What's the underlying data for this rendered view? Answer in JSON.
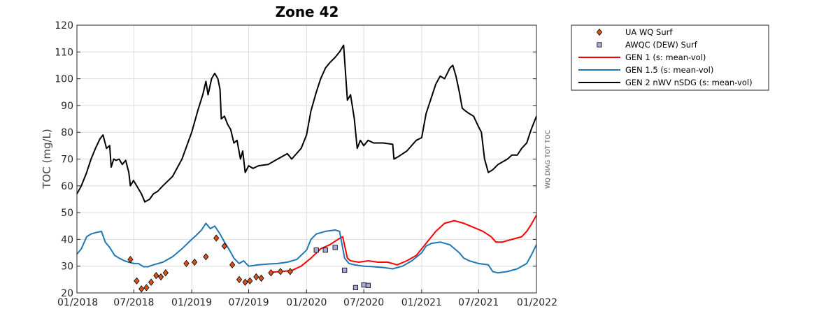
{
  "chart_data": {
    "type": "line",
    "title": "Zone 42",
    "ylabel": "TOC (mg/L)",
    "side_label": "WQ DIAG TOT TOC",
    "xlim": [
      "2018-01-01",
      "2022-01-01"
    ],
    "ylim": [
      20,
      120
    ],
    "grid": true,
    "legend_position": "outside-right",
    "x_ticks": [
      {
        "date": "2018-01-01",
        "label": "01/2018"
      },
      {
        "date": "2018-07-01",
        "label": "07/2018"
      },
      {
        "date": "2019-01-01",
        "label": "01/2019"
      },
      {
        "date": "2019-07-01",
        "label": "07/2019"
      },
      {
        "date": "2020-01-01",
        "label": "01/2020"
      },
      {
        "date": "2020-07-01",
        "label": "07/2020"
      },
      {
        "date": "2021-01-01",
        "label": "01/2021"
      },
      {
        "date": "2021-07-01",
        "label": "07/2021"
      },
      {
        "date": "2022-01-01",
        "label": "01/2022"
      }
    ],
    "y_ticks": [
      20,
      30,
      40,
      50,
      60,
      70,
      80,
      90,
      100,
      110,
      120
    ],
    "series": [
      {
        "name": "UA WQ Surf",
        "kind": "marker",
        "marker": "diamond",
        "color": "#d95319",
        "points": [
          [
            "2018-06-20",
            32.5
          ],
          [
            "2018-07-10",
            24.5
          ],
          [
            "2018-07-25",
            21.5
          ],
          [
            "2018-08-10",
            22.0
          ],
          [
            "2018-08-25",
            24.0
          ],
          [
            "2018-09-10",
            26.5
          ],
          [
            "2018-09-25",
            26.0
          ],
          [
            "2018-10-10",
            27.5
          ],
          [
            "2018-12-15",
            31.0
          ],
          [
            "2019-01-10",
            31.5
          ],
          [
            "2019-02-15",
            33.5
          ],
          [
            "2019-03-20",
            40.5
          ],
          [
            "2019-04-15",
            37.5
          ],
          [
            "2019-05-10",
            30.5
          ],
          [
            "2019-06-01",
            25.0
          ],
          [
            "2019-06-20",
            24.0
          ],
          [
            "2019-07-05",
            24.5
          ],
          [
            "2019-07-25",
            26.0
          ],
          [
            "2019-08-10",
            25.5
          ],
          [
            "2019-09-10",
            27.5
          ],
          [
            "2019-10-10",
            28.0
          ],
          [
            "2019-11-10",
            28.0
          ]
        ]
      },
      {
        "name": "AWQC (DEW) Surf",
        "kind": "marker",
        "marker": "square",
        "color": "#a8a8d8",
        "points": [
          [
            "2020-02-01",
            36.0
          ],
          [
            "2020-03-01",
            36.0
          ],
          [
            "2020-04-01",
            37.0
          ],
          [
            "2020-05-01",
            28.5
          ],
          [
            "2020-06-05",
            22.0
          ],
          [
            "2020-07-01",
            23.0
          ],
          [
            "2020-07-15",
            22.8
          ]
        ]
      },
      {
        "name": "GEN 1 (s: mean-vol)",
        "kind": "line",
        "color": "#ff0000",
        "points": [
          [
            "2019-09-15",
            27.8
          ],
          [
            "2019-10-15",
            28.0
          ],
          [
            "2019-11-15",
            28.4
          ],
          [
            "2019-12-15",
            30.0
          ],
          [
            "2020-01-15",
            33.0
          ],
          [
            "2020-02-15",
            36.5
          ],
          [
            "2020-03-15",
            38.0
          ],
          [
            "2020-04-10",
            40.0
          ],
          [
            "2020-04-25",
            41.0
          ],
          [
            "2020-05-10",
            33.0
          ],
          [
            "2020-05-20",
            32.0
          ],
          [
            "2020-06-15",
            31.5
          ],
          [
            "2020-07-15",
            32.0
          ],
          [
            "2020-08-15",
            31.5
          ],
          [
            "2020-09-15",
            31.5
          ],
          [
            "2020-10-15",
            30.5
          ],
          [
            "2020-11-15",
            32.0
          ],
          [
            "2020-12-15",
            34.0
          ],
          [
            "2021-01-15",
            38.5
          ],
          [
            "2021-02-15",
            43.0
          ],
          [
            "2021-03-15",
            46.0
          ],
          [
            "2021-04-15",
            47.0
          ],
          [
            "2021-05-15",
            46.0
          ],
          [
            "2021-06-15",
            44.5
          ],
          [
            "2021-07-15",
            43.0
          ],
          [
            "2021-08-10",
            41.0
          ],
          [
            "2021-08-25",
            39.0
          ],
          [
            "2021-09-15",
            39.0
          ],
          [
            "2021-10-15",
            40.0
          ],
          [
            "2021-11-15",
            41.0
          ],
          [
            "2021-12-01",
            43.0
          ],
          [
            "2021-12-15",
            45.5
          ],
          [
            "2022-01-01",
            49.0
          ]
        ]
      },
      {
        "name": "GEN 1.5 (s: mean-vol)",
        "kind": "line",
        "color": "#1f77b4",
        "points": [
          [
            "2018-01-01",
            34.5
          ],
          [
            "2018-01-15",
            36.5
          ],
          [
            "2018-02-01",
            41.0
          ],
          [
            "2018-02-15",
            42.0
          ],
          [
            "2018-03-01",
            42.5
          ],
          [
            "2018-03-20",
            43.0
          ],
          [
            "2018-04-01",
            39.0
          ],
          [
            "2018-04-15",
            37.0
          ],
          [
            "2018-05-01",
            34.0
          ],
          [
            "2018-05-15",
            33.0
          ],
          [
            "2018-06-01",
            32.0
          ],
          [
            "2018-06-15",
            31.5
          ],
          [
            "2018-07-01",
            31.0
          ],
          [
            "2018-07-15",
            31.0
          ],
          [
            "2018-08-01",
            29.8
          ],
          [
            "2018-08-15",
            29.8
          ],
          [
            "2018-09-01",
            30.5
          ],
          [
            "2018-10-01",
            31.5
          ],
          [
            "2018-11-01",
            33.5
          ],
          [
            "2018-12-01",
            36.5
          ],
          [
            "2019-01-01",
            40.0
          ],
          [
            "2019-01-15",
            41.5
          ],
          [
            "2019-02-01",
            43.5
          ],
          [
            "2019-02-15",
            46.0
          ],
          [
            "2019-03-01",
            44.0
          ],
          [
            "2019-03-15",
            45.0
          ],
          [
            "2019-04-01",
            42.0
          ],
          [
            "2019-04-15",
            39.0
          ],
          [
            "2019-05-01",
            36.0
          ],
          [
            "2019-05-15",
            33.0
          ],
          [
            "2019-06-01",
            31.0
          ],
          [
            "2019-06-15",
            32.0
          ],
          [
            "2019-07-01",
            30.0
          ],
          [
            "2019-08-01",
            30.5
          ],
          [
            "2019-09-01",
            30.8
          ],
          [
            "2019-10-01",
            31.0
          ],
          [
            "2019-11-01",
            31.5
          ],
          [
            "2019-12-01",
            32.5
          ],
          [
            "2020-01-01",
            36.0
          ],
          [
            "2020-01-15",
            40.0
          ],
          [
            "2020-02-01",
            42.0
          ],
          [
            "2020-03-01",
            43.0
          ],
          [
            "2020-04-01",
            43.5
          ],
          [
            "2020-04-15",
            43.0
          ],
          [
            "2020-05-01",
            33.0
          ],
          [
            "2020-05-15",
            31.0
          ],
          [
            "2020-06-01",
            30.5
          ],
          [
            "2020-07-01",
            30.0
          ],
          [
            "2020-08-01",
            29.8
          ],
          [
            "2020-09-01",
            29.5
          ],
          [
            "2020-10-01",
            29.0
          ],
          [
            "2020-11-01",
            30.0
          ],
          [
            "2020-12-01",
            32.0
          ],
          [
            "2021-01-01",
            35.0
          ],
          [
            "2021-01-15",
            37.5
          ],
          [
            "2021-02-01",
            38.5
          ],
          [
            "2021-03-01",
            39.0
          ],
          [
            "2021-04-01",
            38.0
          ],
          [
            "2021-05-01",
            35.0
          ],
          [
            "2021-05-15",
            33.0
          ],
          [
            "2021-06-01",
            32.0
          ],
          [
            "2021-07-01",
            31.0
          ],
          [
            "2021-08-01",
            30.5
          ],
          [
            "2021-08-15",
            28.0
          ],
          [
            "2021-09-01",
            27.5
          ],
          [
            "2021-10-01",
            28.0
          ],
          [
            "2021-11-01",
            29.0
          ],
          [
            "2021-12-01",
            31.0
          ],
          [
            "2021-12-15",
            34.0
          ],
          [
            "2022-01-01",
            38.0
          ]
        ]
      },
      {
        "name": "GEN 2 nWV nSDG (s: mean-vol)",
        "kind": "line",
        "color": "#000000",
        "points": [
          [
            "2018-01-01",
            57.0
          ],
          [
            "2018-01-15",
            60.0
          ],
          [
            "2018-02-01",
            65.0
          ],
          [
            "2018-02-15",
            70.0
          ],
          [
            "2018-03-01",
            74.0
          ],
          [
            "2018-03-15",
            77.5
          ],
          [
            "2018-03-25",
            79.0
          ],
          [
            "2018-04-05",
            74.0
          ],
          [
            "2018-04-15",
            75.0
          ],
          [
            "2018-04-20",
            67.0
          ],
          [
            "2018-04-28",
            70.0
          ],
          [
            "2018-05-05",
            69.5
          ],
          [
            "2018-05-15",
            70.0
          ],
          [
            "2018-05-25",
            68.0
          ],
          [
            "2018-06-05",
            69.5
          ],
          [
            "2018-06-15",
            65.0
          ],
          [
            "2018-06-20",
            60.0
          ],
          [
            "2018-06-30",
            62.0
          ],
          [
            "2018-07-10",
            60.0
          ],
          [
            "2018-07-25",
            57.0
          ],
          [
            "2018-08-05",
            54.0
          ],
          [
            "2018-08-20",
            55.0
          ],
          [
            "2018-09-01",
            57.0
          ],
          [
            "2018-09-15",
            58.0
          ],
          [
            "2018-10-01",
            60.0
          ],
          [
            "2018-11-01",
            63.5
          ],
          [
            "2018-12-01",
            70.0
          ],
          [
            "2019-01-01",
            80.0
          ],
          [
            "2019-01-20",
            88.0
          ],
          [
            "2019-02-05",
            94.0
          ],
          [
            "2019-02-15",
            99.0
          ],
          [
            "2019-02-22",
            94.0
          ],
          [
            "2019-03-05",
            100.0
          ],
          [
            "2019-03-15",
            102.0
          ],
          [
            "2019-03-25",
            100.0
          ],
          [
            "2019-04-01",
            96.0
          ],
          [
            "2019-04-05",
            85.0
          ],
          [
            "2019-04-15",
            86.0
          ],
          [
            "2019-04-25",
            83.0
          ],
          [
            "2019-05-05",
            81.0
          ],
          [
            "2019-05-15",
            76.0
          ],
          [
            "2019-05-25",
            77.0
          ],
          [
            "2019-06-05",
            70.0
          ],
          [
            "2019-06-12",
            73.0
          ],
          [
            "2019-06-20",
            65.0
          ],
          [
            "2019-07-01",
            67.5
          ],
          [
            "2019-07-15",
            66.5
          ],
          [
            "2019-08-01",
            67.5
          ],
          [
            "2019-09-01",
            68.0
          ],
          [
            "2019-10-01",
            70.0
          ],
          [
            "2019-11-01",
            72.0
          ],
          [
            "2019-11-15",
            70.0
          ],
          [
            "2019-12-15",
            74.0
          ],
          [
            "2020-01-01",
            79.0
          ],
          [
            "2020-01-15",
            88.0
          ],
          [
            "2020-02-01",
            95.0
          ],
          [
            "2020-02-15",
            100.0
          ],
          [
            "2020-03-01",
            104.0
          ],
          [
            "2020-03-15",
            106.0
          ],
          [
            "2020-04-01",
            108.0
          ],
          [
            "2020-04-15",
            110.0
          ],
          [
            "2020-04-28",
            112.5
          ],
          [
            "2020-05-10",
            92.0
          ],
          [
            "2020-05-20",
            94.0
          ],
          [
            "2020-06-01",
            85.0
          ],
          [
            "2020-06-10",
            74.0
          ],
          [
            "2020-06-20",
            77.0
          ],
          [
            "2020-07-01",
            75.0
          ],
          [
            "2020-07-15",
            77.0
          ],
          [
            "2020-08-01",
            76.0
          ],
          [
            "2020-09-01",
            76.0
          ],
          [
            "2020-10-01",
            75.5
          ],
          [
            "2020-10-05",
            70.0
          ],
          [
            "2020-10-20",
            71.0
          ],
          [
            "2020-11-15",
            73.0
          ],
          [
            "2020-12-15",
            77.0
          ],
          [
            "2021-01-01",
            78.0
          ],
          [
            "2021-01-15",
            87.0
          ],
          [
            "2021-02-01",
            93.0
          ],
          [
            "2021-02-15",
            98.0
          ],
          [
            "2021-03-01",
            101.0
          ],
          [
            "2021-03-15",
            100.0
          ],
          [
            "2021-04-01",
            104.0
          ],
          [
            "2021-04-10",
            105.0
          ],
          [
            "2021-04-20",
            101.0
          ],
          [
            "2021-05-01",
            95.0
          ],
          [
            "2021-05-10",
            89.0
          ],
          [
            "2021-05-20",
            88.0
          ],
          [
            "2021-06-01",
            87.0
          ],
          [
            "2021-06-15",
            86.0
          ],
          [
            "2021-07-01",
            82.0
          ],
          [
            "2021-07-10",
            80.0
          ],
          [
            "2021-07-20",
            70.0
          ],
          [
            "2021-08-01",
            65.0
          ],
          [
            "2021-08-15",
            66.0
          ],
          [
            "2021-09-01",
            68.0
          ],
          [
            "2021-10-01",
            70.0
          ],
          [
            "2021-10-15",
            71.5
          ],
          [
            "2021-11-01",
            71.5
          ],
          [
            "2021-11-15",
            74.0
          ],
          [
            "2021-12-01",
            76.0
          ],
          [
            "2021-12-15",
            81.0
          ],
          [
            "2022-01-01",
            86.0
          ]
        ]
      }
    ]
  }
}
